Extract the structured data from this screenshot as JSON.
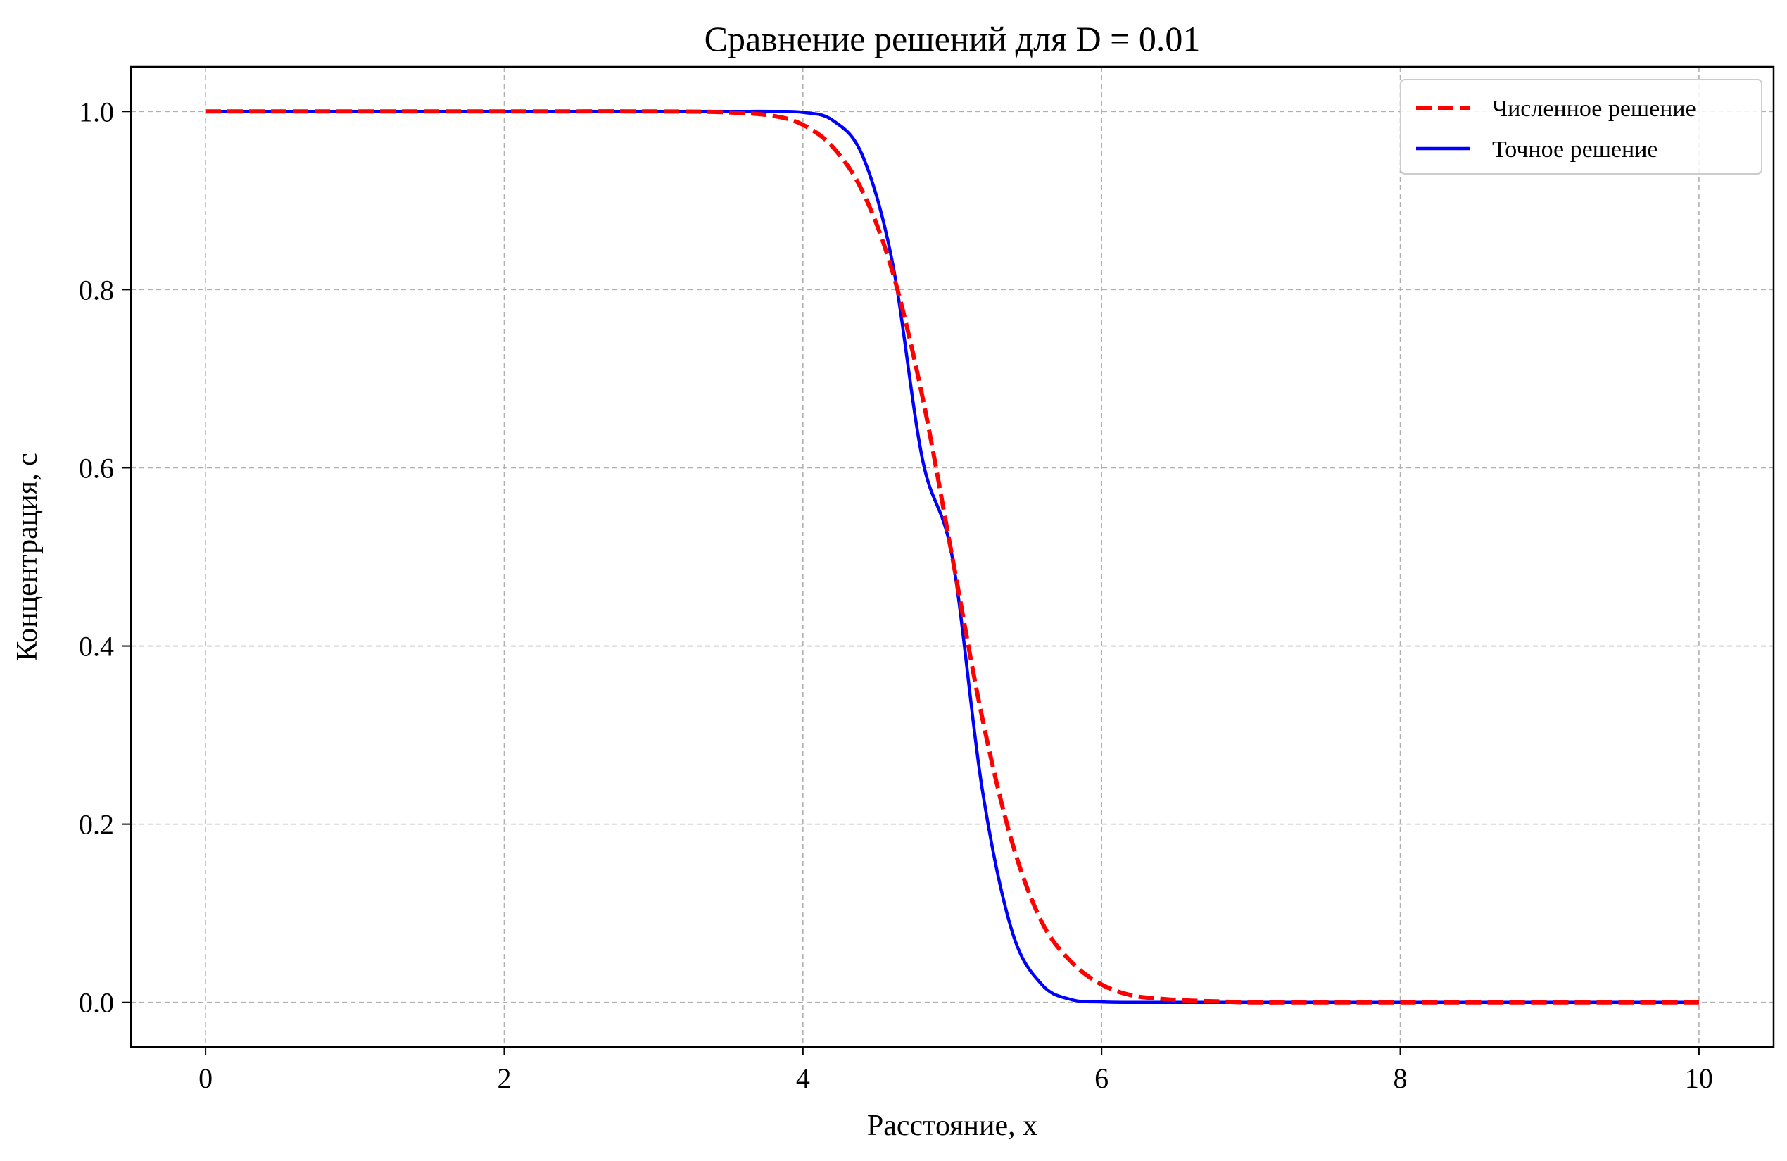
{
  "chart_data": {
    "type": "line",
    "title": "Сравнение решений для D = 0.01",
    "xlabel": "Расстояние, x",
    "ylabel": "Концентрация, с",
    "xlim": [
      -0.5,
      10.5
    ],
    "ylim": [
      -0.05,
      1.05
    ],
    "xticks": [
      0,
      2,
      4,
      6,
      8,
      10
    ],
    "yticks": [
      0.0,
      0.2,
      0.4,
      0.6,
      0.8,
      1.0
    ],
    "xtick_labels": [
      "0",
      "2",
      "4",
      "6",
      "8",
      "10"
    ],
    "ytick_labels": [
      "0.0",
      "0.2",
      "0.4",
      "0.6",
      "0.8",
      "1.0"
    ],
    "grid": true,
    "legend_position": "top-right",
    "series": [
      {
        "name": "Численное решение",
        "color": "#ff0000",
        "style": "dashed",
        "x": [
          0,
          1,
          2,
          3,
          3.5,
          3.8,
          4.0,
          4.2,
          4.4,
          4.6,
          4.8,
          5.0,
          5.2,
          5.4,
          5.6,
          5.8,
          6.0,
          6.2,
          6.4,
          6.6,
          6.8,
          7.0,
          7.5,
          8,
          9,
          10
        ],
        "y": [
          1.0,
          1.0,
          1.0,
          1.0,
          0.999,
          0.995,
          0.985,
          0.96,
          0.91,
          0.82,
          0.68,
          0.5,
          0.32,
          0.18,
          0.09,
          0.045,
          0.02,
          0.008,
          0.004,
          0.002,
          0.001,
          0.0,
          0.0,
          0.0,
          0.0,
          0.0
        ]
      },
      {
        "name": "Точное решение",
        "color": "#0000ff",
        "style": "solid",
        "x": [
          0,
          1,
          2,
          3,
          3.5,
          3.8,
          4.0,
          4.2,
          4.4,
          4.6,
          4.8,
          5.0,
          5.2,
          5.4,
          5.6,
          5.8,
          6.0,
          6.2,
          7,
          8,
          9,
          10
        ],
        "y": [
          1.0,
          1.0,
          1.0,
          1.0,
          1.0,
          1.0,
          0.999,
          0.99,
          0.95,
          0.83,
          0.61,
          0.5,
          0.24,
          0.08,
          0.02,
          0.003,
          0.0005,
          0.0,
          0.0,
          0.0,
          0.0,
          0.0
        ]
      }
    ]
  }
}
